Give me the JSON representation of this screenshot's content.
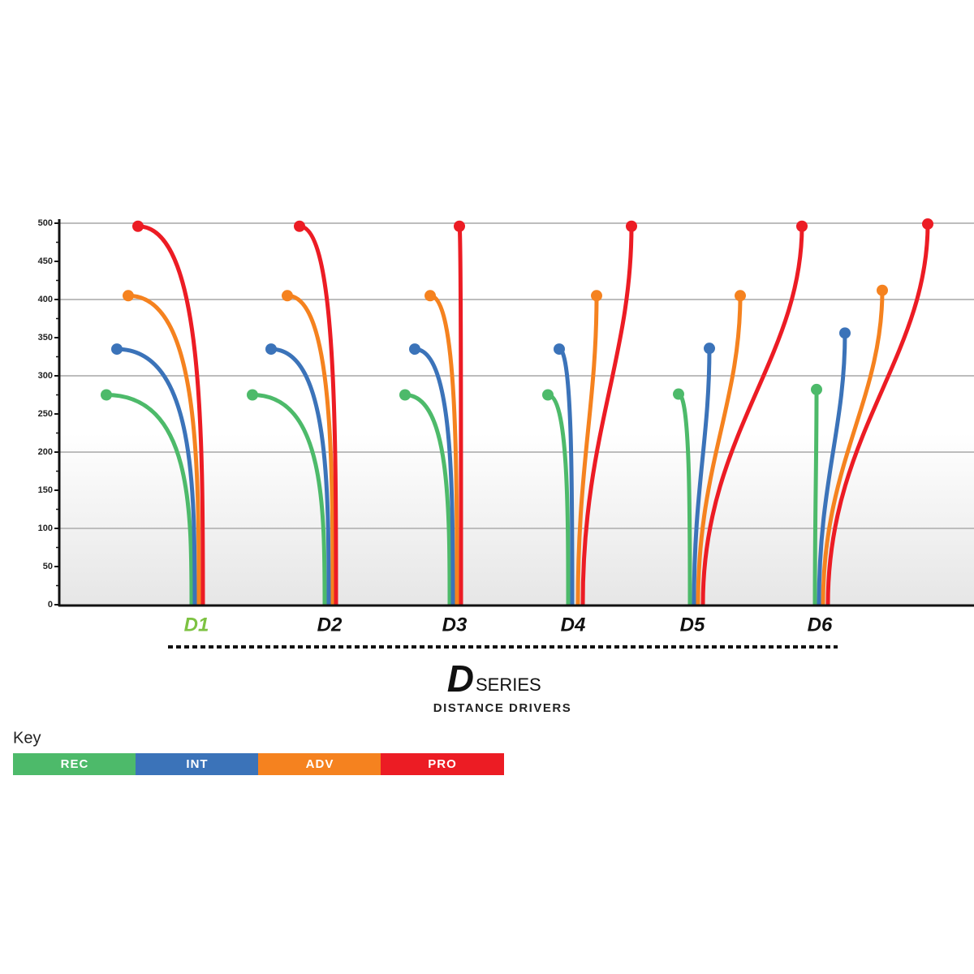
{
  "chart_data": {
    "type": "flight",
    "logo_letter": "D",
    "title": "SERIES",
    "subtitle": "DISTANCE DRIVERS",
    "legend_title": "Key",
    "categories": [
      "D1",
      "D2",
      "D3",
      "D4",
      "D5",
      "D6"
    ],
    "highlight": {
      "index": 0,
      "color": "#7dc242"
    },
    "series": [
      {
        "name": "REC",
        "color": "#4dba6a",
        "values": [
          275,
          275,
          275,
          275,
          276,
          282
        ]
      },
      {
        "name": "INT",
        "color": "#3b73b9",
        "values": [
          335,
          335,
          335,
          335,
          336,
          356
        ]
      },
      {
        "name": "ADV",
        "color": "#f5821f",
        "values": [
          405,
          405,
          405,
          405,
          405,
          412
        ]
      },
      {
        "name": "PRO",
        "color": "#ec1c24",
        "values": [
          496,
          496,
          496,
          496,
          496,
          499
        ]
      }
    ],
    "ylim": [
      0,
      500
    ],
    "yticks": [
      0,
      50,
      100,
      150,
      200,
      250,
      300,
      350,
      400,
      450,
      500
    ],
    "grid": true
  }
}
